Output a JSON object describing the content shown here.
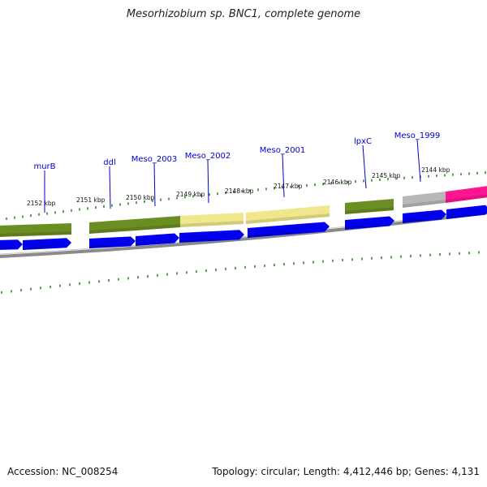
{
  "title": "Mesorhizobium sp. BNC1, complete genome",
  "footer": {
    "accession": "Accession: NC_008254",
    "summary": "Topology: circular; Length: 4,412,446 bp; Genes: 4,131"
  },
  "colors": {
    "forward_arrow": "#0000ee",
    "gene_label": "#0000cc",
    "tick": "#2e8b22",
    "backbone": "#8a8a8a",
    "cog_green": "#6b8e23",
    "cog_yellow": "#f0e68c",
    "cog_gray": "#b8b8b8",
    "cog_magenta": "#ff1493"
  },
  "kbp_labels": [
    "2152 kbp",
    "2151 kbp",
    "2150 kbp",
    "2149 kbp",
    "2148 kbp",
    "2147 kbp",
    "2146 kbp",
    "2145 kbp",
    "2144 kbp"
  ],
  "gene_labels": [
    "murB",
    "ddl",
    "Meso_2003",
    "Meso_2002",
    "Meso_2001",
    "lpxC",
    "Meso_1999"
  ],
  "feature_colors": [
    "cog_green",
    "cog_green",
    "cog_green",
    "cog_yellow",
    "cog_yellow",
    "cog_green",
    "cog_gray",
    "cog_magenta"
  ]
}
